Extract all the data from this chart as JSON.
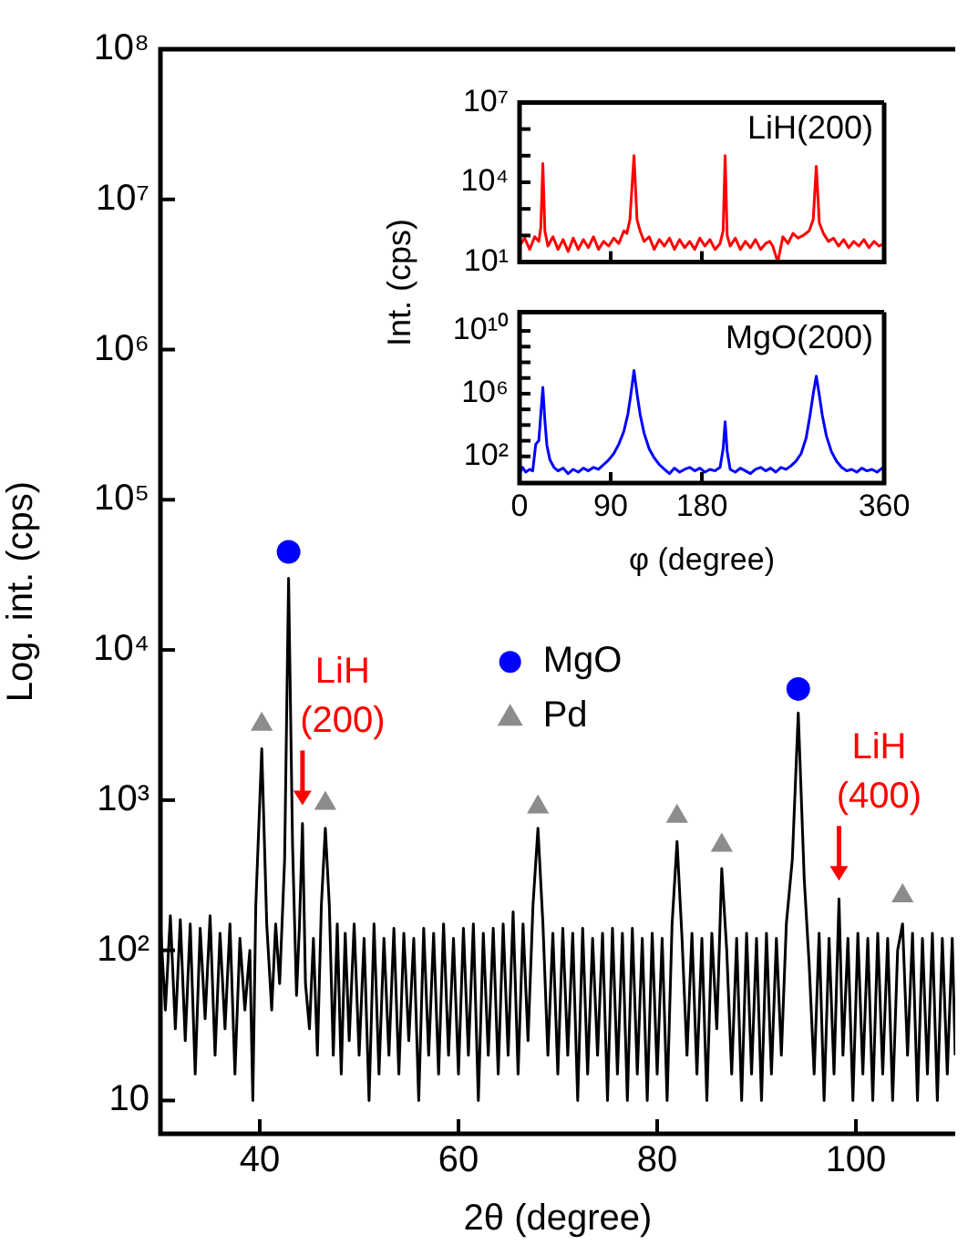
{
  "chart_data": [
    {
      "type": "line",
      "xlabel": "2θ (degree)",
      "ylabel": "Log. int. (cps)",
      "log": "y",
      "legend": "center",
      "xlim": [
        30,
        110
      ],
      "xticks": [
        40,
        60,
        80,
        100
      ],
      "ylim": [
        6,
        100000000
      ],
      "yticks": [
        10,
        {
          "value": 100,
          "label": "10²"
        },
        {
          "value": 1000,
          "label": "10³"
        },
        {
          "value": 10000,
          "label": "10⁴"
        },
        {
          "value": 100000,
          "label": "10⁵"
        },
        {
          "value": 1000000,
          "label": "10⁶"
        },
        {
          "value": 10000000,
          "label": "10⁷"
        },
        {
          "value": 100000000,
          "label": "10⁸"
        }
      ],
      "annotations": [
        {
          "text": "LiH (200)",
          "x": 44.3,
          "y": 700
        },
        {
          "text": "LiH (400)",
          "x": 98.3,
          "y": 220
        }
      ],
      "series": [
        {
          "type": "line",
          "color": "#000000",
          "marker": "none",
          "x": [
            30,
            30.5,
            31,
            31.5,
            32,
            32.5,
            33,
            33.5,
            34,
            34.5,
            35,
            35.5,
            36,
            36.5,
            37,
            37.5,
            38,
            38.5,
            39,
            39.3,
            39.6,
            40.2,
            40.7,
            41.2,
            41.6,
            42,
            42.5,
            42.9,
            43.3,
            43.7,
            44,
            44.3,
            44.6,
            45,
            45.4,
            45.8,
            46.2,
            46.6,
            47,
            47.4,
            47.8,
            48.2,
            48.6,
            49,
            49.5,
            50,
            50.5,
            51,
            51.5,
            52,
            52.5,
            53,
            53.5,
            54,
            54.5,
            55,
            55.5,
            56,
            56.5,
            57,
            57.5,
            58,
            58.5,
            59,
            59.5,
            60,
            60.5,
            61,
            61.5,
            62,
            62.5,
            63,
            63.5,
            64,
            64.5,
            65,
            65.5,
            66,
            66.5,
            67,
            67.5,
            68,
            68.5,
            69,
            69.5,
            70,
            70.5,
            71,
            71.5,
            72,
            72.5,
            73,
            73.5,
            74,
            74.5,
            75,
            75.5,
            76,
            76.5,
            77,
            77.5,
            78,
            78.5,
            79,
            79.5,
            80,
            80.5,
            81,
            81.5,
            82,
            82.5,
            83,
            83.5,
            84,
            84.5,
            85,
            85.5,
            86,
            86.5,
            87,
            87.5,
            88,
            88.5,
            89,
            89.5,
            90,
            90.5,
            91,
            91.5,
            92,
            92.5,
            93,
            93.6,
            94.2,
            94.8,
            95.3,
            95.8,
            96.3,
            96.8,
            97.3,
            97.8,
            98.3,
            98.7,
            99.2,
            99.7,
            100.2,
            100.7,
            101.2,
            101.7,
            102.2,
            102.7,
            103.2,
            103.7,
            104.2,
            104.7,
            105.2,
            105.7,
            106.2,
            106.7,
            107.2,
            107.7,
            108.2,
            108.7,
            109.2,
            109.7,
            110
          ],
          "values": [
            150,
            40,
            170,
            30,
            160,
            25,
            150,
            15,
            140,
            35,
            170,
            20,
            130,
            30,
            150,
            15,
            120,
            40,
            100,
            10,
            200,
            2200,
            150,
            40,
            150,
            60,
            400,
            30000,
            500,
            50,
            150,
            700,
            60,
            30,
            120,
            20,
            200,
            650,
            200,
            20,
            150,
            15,
            130,
            25,
            150,
            20,
            120,
            10,
            150,
            15,
            120,
            20,
            140,
            15,
            130,
            25,
            120,
            10,
            140,
            20,
            130,
            15,
            150,
            20,
            120,
            15,
            140,
            20,
            150,
            10,
            130,
            20,
            140,
            15,
            150,
            20,
            180,
            15,
            150,
            25,
            200,
            650,
            150,
            20,
            130,
            15,
            140,
            20,
            130,
            10,
            140,
            15,
            120,
            20,
            130,
            10,
            140,
            15,
            130,
            10,
            140,
            15,
            120,
            10,
            130,
            15,
            120,
            10,
            150,
            530,
            120,
            20,
            130,
            15,
            120,
            10,
            130,
            30,
            350,
            100,
            15,
            120,
            10,
            130,
            15,
            120,
            10,
            130,
            15,
            120,
            20,
            150,
            400,
            3800,
            300,
            80,
            15,
            130,
            10,
            120,
            15,
            220,
            20,
            120,
            10,
            130,
            15,
            120,
            10,
            130,
            15,
            120,
            10,
            100,
            150,
            20,
            130,
            10,
            120,
            15,
            130,
            10,
            120,
            15,
            120,
            20
          ]
        },
        {
          "type": "scatter",
          "name": "MgO",
          "color": "#0000ff",
          "marker": "circle",
          "x": [
            42.9,
            94.2
          ],
          "values": [
            45000,
            5500
          ]
        },
        {
          "type": "scatter",
          "name": "Pd",
          "color": "#8c8c8c",
          "marker": "triangle",
          "x": [
            40.2,
            46.6,
            68,
            82,
            86.5,
            104.7
          ],
          "values": [
            3200,
            950,
            900,
            780,
            500,
            230
          ]
        }
      ]
    },
    {
      "type": "line",
      "title": "LiH(200)",
      "ylabel": "Int. (cps)",
      "log": "y",
      "tick_labels": "y",
      "xlim": [
        0,
        360
      ],
      "xticks": [
        0,
        90,
        180,
        360
      ],
      "ylim": [
        10,
        10000000
      ],
      "yticks": [
        {
          "value": 10,
          "label": "10¹"
        },
        {
          "value": 100,
          "label": null
        },
        {
          "value": 1000,
          "label": null
        },
        {
          "value": 10000,
          "label": "10⁴"
        },
        {
          "value": 100000,
          "label": null
        },
        {
          "value": 1000000,
          "label": null
        },
        {
          "value": 10000000,
          "label": "10⁷"
        }
      ],
      "series": [
        {
          "type": "line",
          "color": "#ff0000",
          "marker": "none",
          "x": [
            0,
            5,
            10,
            15,
            19,
            21,
            23,
            25,
            28,
            33,
            38,
            43,
            48,
            53,
            58,
            63,
            68,
            73,
            78,
            83,
            88,
            93,
            98,
            103,
            106,
            109,
            113,
            116,
            119,
            123,
            128,
            133,
            138,
            143,
            148,
            153,
            158,
            163,
            168,
            173,
            178,
            183,
            188,
            193,
            198,
            201,
            203,
            205,
            208,
            213,
            218,
            223,
            228,
            233,
            238,
            243,
            247,
            250,
            255,
            260,
            265,
            270,
            275,
            280,
            286,
            290,
            293,
            296,
            300,
            305,
            310,
            315,
            320,
            325,
            330,
            335,
            340,
            345,
            350,
            355,
            360
          ],
          "values": [
            40,
            80,
            30,
            90,
            60,
            200,
            50000,
            150,
            40,
            90,
            30,
            70,
            25,
            80,
            30,
            70,
            35,
            90,
            30,
            60,
            40,
            80,
            50,
            150,
            120,
            400,
            100000,
            400,
            150,
            60,
            90,
            30,
            70,
            40,
            80,
            30,
            70,
            35,
            60,
            30,
            80,
            40,
            70,
            30,
            50,
            150,
            100000,
            100,
            40,
            80,
            30,
            60,
            35,
            70,
            30,
            50,
            60,
            40,
            10,
            90,
            50,
            120,
            80,
            100,
            150,
            400,
            40000,
            300,
            120,
            60,
            80,
            40,
            70,
            35,
            60,
            40,
            70,
            35,
            60,
            40,
            50
          ]
        }
      ]
    },
    {
      "type": "line",
      "title": "MgO(200)",
      "xlabel": "φ (degree)",
      "log": "y",
      "xlim": [
        0,
        360
      ],
      "xticks": [
        0,
        90,
        180,
        360
      ],
      "ylim": [
        2,
        160000000000
      ],
      "yticks": [
        {
          "value": 100,
          "label": "10²"
        },
        {
          "value": 1000,
          "label": null
        },
        {
          "value": 10000,
          "label": null
        },
        {
          "value": 100000,
          "label": null
        },
        {
          "value": 1000000,
          "label": "10⁶"
        },
        {
          "value": 10000000,
          "label": null
        },
        {
          "value": 100000000,
          "label": null
        },
        {
          "value": 1000000000,
          "label": null
        },
        {
          "value": 10000000000,
          "label": "10¹⁰"
        }
      ],
      "series": [
        {
          "type": "line",
          "color": "#0000ff",
          "marker": "none",
          "x": [
            0,
            3,
            6,
            10,
            13,
            16,
            19,
            21,
            23,
            25,
            27,
            30,
            34,
            38,
            43,
            48,
            53,
            58,
            63,
            68,
            73,
            78,
            83,
            88,
            93,
            98,
            103,
            107,
            110,
            113,
            116,
            119,
            123,
            128,
            133,
            138,
            143,
            148,
            153,
            158,
            163,
            168,
            173,
            178,
            183,
            188,
            193,
            198,
            201,
            203,
            205,
            208,
            213,
            218,
            223,
            228,
            233,
            238,
            243,
            248,
            253,
            258,
            263,
            268,
            273,
            278,
            283,
            287,
            290,
            293,
            296,
            299,
            303,
            308,
            313,
            318,
            323,
            328,
            333,
            338,
            343,
            348,
            353,
            358,
            360
          ],
          "values": [
            8,
            20,
            10,
            15,
            12,
            600,
            1000,
            50000,
            2500000,
            20000,
            500,
            60,
            20,
            12,
            18,
            8,
            15,
            10,
            18,
            12,
            20,
            15,
            30,
            60,
            150,
            600,
            4000,
            50000,
            1000000,
            30000000,
            1000000,
            50000,
            3000,
            300,
            80,
            30,
            15,
            8,
            18,
            10,
            15,
            20,
            12,
            18,
            10,
            15,
            12,
            20,
            300,
            16000,
            200,
            15,
            10,
            18,
            12,
            8,
            15,
            20,
            12,
            18,
            10,
            20,
            15,
            25,
            50,
            150,
            1500,
            50000,
            1000000,
            13000000,
            800000,
            40000,
            2000,
            200,
            50,
            20,
            12,
            15,
            10,
            18,
            12,
            15,
            10,
            18,
            12
          ]
        }
      ]
    }
  ]
}
